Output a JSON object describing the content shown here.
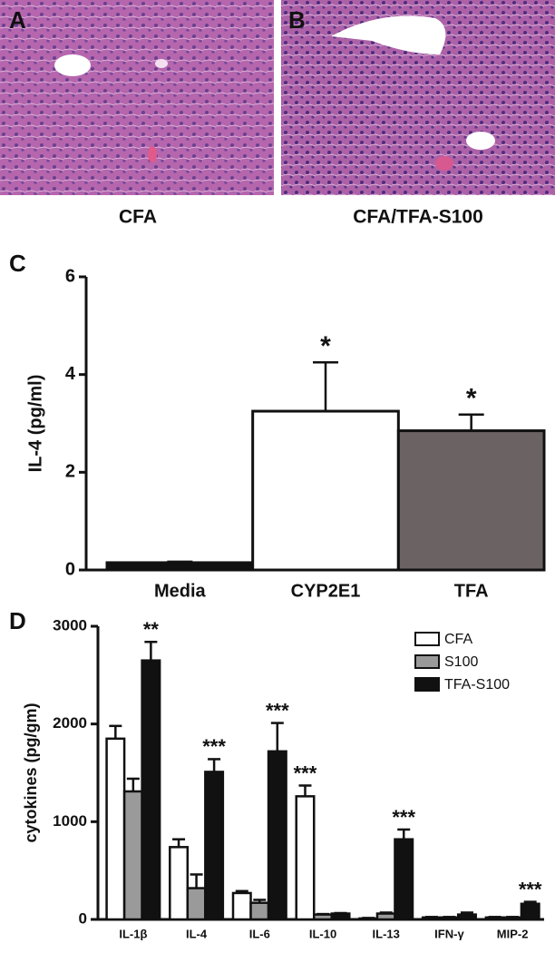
{
  "panel_labels": [
    "A",
    "B",
    "C",
    "D"
  ],
  "image_captions": [
    "CFA",
    "CFA/TFA-S100"
  ],
  "chart_data": [
    {
      "type": "bar",
      "y_label": "IL-4 (pg/ml)",
      "categories": [
        "Media",
        "CYP2E1",
        "TFA"
      ],
      "values": [
        0.15,
        3.25,
        2.85
      ],
      "errors": [
        0.02,
        1.0,
        0.33
      ],
      "colors": [
        "#111111",
        "#ffffff",
        "#6b6363"
      ],
      "ylim": [
        0,
        6
      ],
      "yticks": [
        0,
        2,
        4,
        6
      ],
      "annotations": [
        {
          "text": "*",
          "category": "CYP2E1"
        },
        {
          "text": "*",
          "category": "TFA"
        }
      ]
    },
    {
      "type": "grouped-bar",
      "y_label": "cytokines (pg/gm)",
      "categories": [
        "IL-1β",
        "IL-4",
        "IL-6",
        "IL-10",
        "IL-13",
        "IFN-γ",
        "MIP-2"
      ],
      "series": [
        {
          "name": "CFA",
          "color": "#ffffff",
          "values": [
            1850,
            740,
            270,
            1260,
            10,
            20,
            20
          ],
          "errors": [
            130,
            80,
            20,
            110,
            5,
            5,
            5
          ]
        },
        {
          "name": "S100",
          "color": "#9a9a9a",
          "values": [
            1310,
            320,
            170,
            50,
            60,
            20,
            20
          ],
          "errors": [
            130,
            140,
            30,
            5,
            10,
            5,
            5
          ]
        },
        {
          "name": "TFA-S100",
          "color": "#111111",
          "values": [
            2650,
            1510,
            1720,
            60,
            820,
            50,
            160
          ],
          "errors": [
            190,
            130,
            290,
            5,
            100,
            20,
            20
          ]
        }
      ],
      "ylim": [
        0,
        3000
      ],
      "yticks": [
        0,
        1000,
        2000,
        3000
      ],
      "legend": "top-right",
      "annotations": [
        {
          "text": "**",
          "category": "IL-1β",
          "series": "TFA-S100"
        },
        {
          "text": "***",
          "category": "IL-4",
          "series": "TFA-S100"
        },
        {
          "text": "***",
          "category": "IL-6",
          "series": "TFA-S100"
        },
        {
          "text": "***",
          "category": "IL-10",
          "series": "CFA"
        },
        {
          "text": "***",
          "category": "IL-13",
          "series": "TFA-S100"
        },
        {
          "text": "***",
          "category": "MIP-2",
          "series": "TFA-S100"
        }
      ]
    }
  ]
}
